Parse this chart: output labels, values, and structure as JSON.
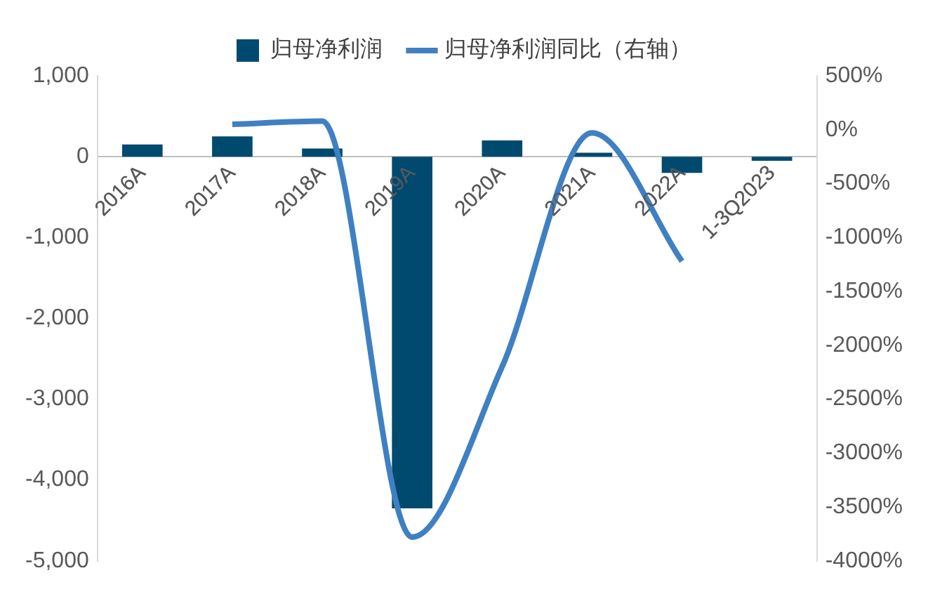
{
  "chart_data": {
    "type": "bar",
    "categories": [
      "2016A",
      "2017A",
      "2018A",
      "2019A",
      "2020A",
      "2021A",
      "2022A",
      "1-3Q2023"
    ],
    "series": [
      {
        "name": "归母净利润",
        "color": "#004a70",
        "values": [
          150,
          250,
          100,
          -4350,
          200,
          50,
          -200,
          -50
        ]
      },
      {
        "name": "归母净利润同比（右轴）",
        "type": "line",
        "axis": "y2",
        "color": "#3f80c2",
        "values": [
          null,
          50,
          80,
          -3780,
          -2200,
          -30,
          -1220,
          null
        ]
      }
    ],
    "ylim": [
      -5000,
      1000
    ],
    "yticks": [
      {
        "value": -5000,
        "label": "-5,000"
      },
      {
        "value": -4000,
        "label": "-4,000"
      },
      {
        "value": -3000,
        "label": "-3,000"
      },
      {
        "value": -2000,
        "label": "-2,000"
      },
      {
        "value": -1000,
        "label": "-1,000"
      },
      0,
      {
        "value": 1000,
        "label": "1,000"
      }
    ],
    "y2lim": [
      -4000,
      500
    ],
    "y2ticks": [
      {
        "value": -4000,
        "label": "-4000%"
      },
      {
        "value": -3500,
        "label": "-3500%"
      },
      {
        "value": -3000,
        "label": "-3000%"
      },
      {
        "value": -2500,
        "label": "-2500%"
      },
      {
        "value": -2000,
        "label": "-2000%"
      },
      {
        "value": -1500,
        "label": "-1500%"
      },
      {
        "value": -1000,
        "label": "-1000%"
      },
      {
        "value": -500,
        "label": "-500%"
      },
      {
        "value": 0,
        "label": "0%"
      },
      {
        "value": 500,
        "label": "500%"
      }
    ],
    "grid": false,
    "legend": "top",
    "marker": "none"
  }
}
